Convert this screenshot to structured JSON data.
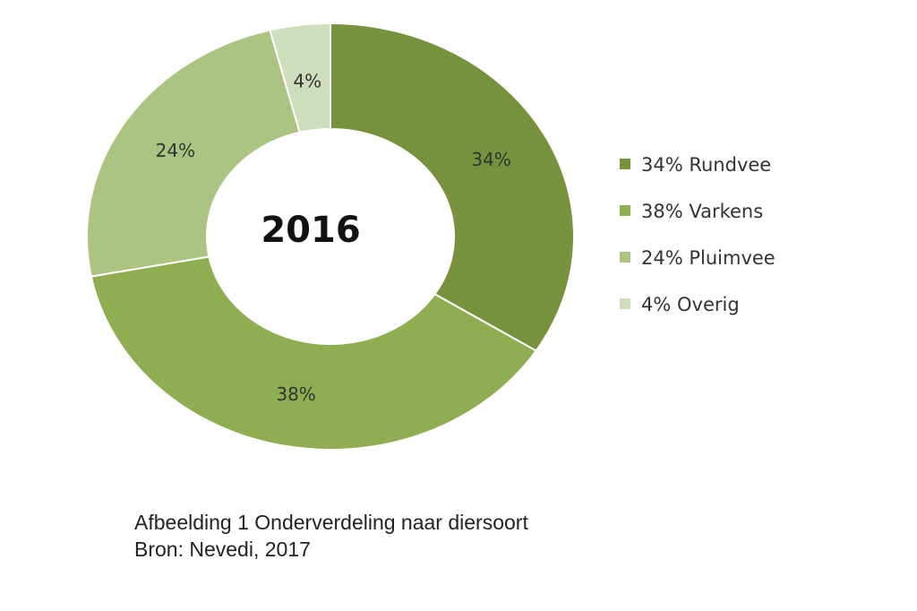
{
  "chart_data": {
    "type": "pie",
    "subtype": "donut",
    "center_label": "2016",
    "categories": [
      "Rundvee",
      "Varkens",
      "Pluimvee",
      "Overig"
    ],
    "values": [
      34,
      38,
      24,
      4
    ],
    "slice_labels": [
      "34%",
      "38%",
      "24%",
      "4%"
    ],
    "legend": [
      "34% Rundvee",
      "38% Varkens",
      "24% Pluimvee",
      "4% Overig"
    ],
    "legend_position": "right",
    "colors": [
      "#77923c",
      "#8fae51",
      "#abc482",
      "#d0ddbc"
    ]
  },
  "caption": {
    "line1": "Afbeelding 1 Onderverdeling naar diersoort",
    "line2": "Bron: Nevedi, 2017"
  }
}
